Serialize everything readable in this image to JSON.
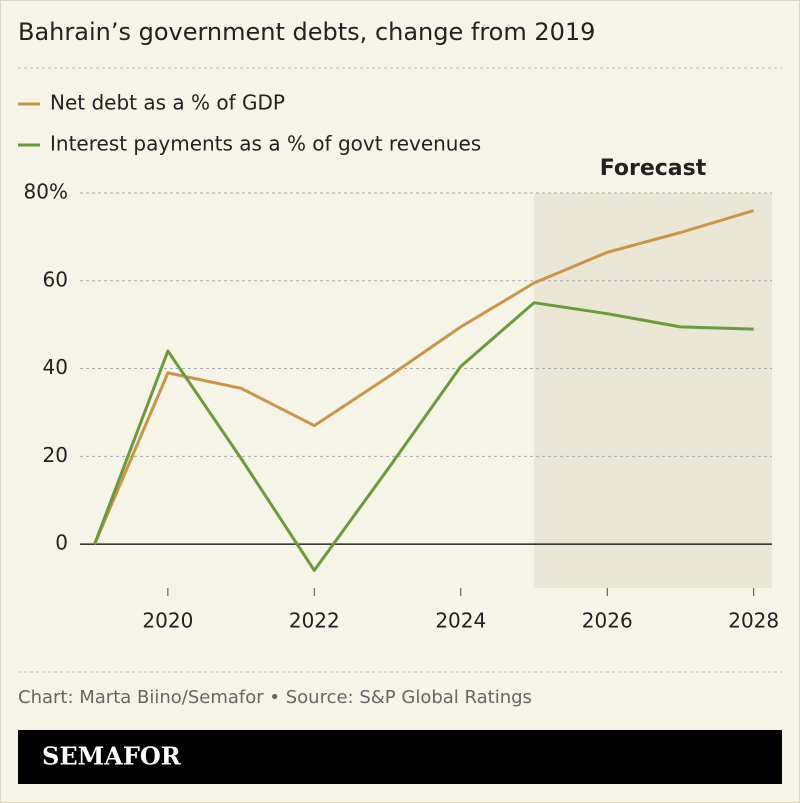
{
  "chart_data": {
    "type": "line",
    "title": "Bahrain’s government debts, change from 2019",
    "x": [
      2019,
      2020,
      2021,
      2022,
      2023,
      2024,
      2025,
      2026,
      2027,
      2028
    ],
    "series": [
      {
        "name": "Net debt as a % of GDP",
        "color": "#c8954a",
        "values": [
          0,
          39,
          35.5,
          27,
          38,
          49.5,
          59.5,
          66.5,
          71,
          76
        ]
      },
      {
        "name": "Interest payments as a % of govt revenues",
        "color": "#6b9a3c",
        "values": [
          0,
          44,
          19.5,
          -6,
          17,
          40.5,
          55,
          52.5,
          49.5,
          49
        ]
      }
    ],
    "xlim": [
      2018.8,
      2028.25
    ],
    "ylim": [
      -10,
      80
    ],
    "xticks": [
      2020,
      2022,
      2024,
      2026,
      2028
    ],
    "yticks": [
      0,
      20,
      40,
      60,
      {
        "value": 80,
        "label": "80%"
      }
    ],
    "grid": true,
    "forecast_start": 2025,
    "annotation": "Forecast",
    "source": "Chart: Marta Biino/Semafor • Source: S&P Global Ratings",
    "brand": "SEMAFOR"
  }
}
